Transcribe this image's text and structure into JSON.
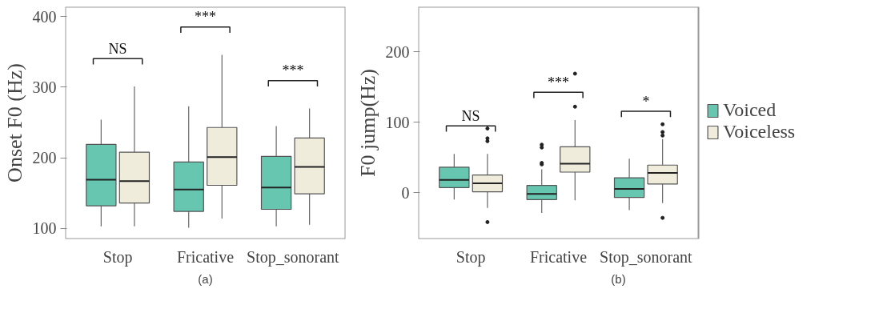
{
  "chart_data": [
    {
      "type": "box",
      "ylabel": "Onset F0 (Hz)",
      "xlabel": "(a)",
      "categories": [
        "Stop",
        "Fricative",
        "Stop_sonorant"
      ],
      "ylim": [
        85,
        414
      ],
      "yticks": [
        100,
        200,
        300,
        400
      ],
      "grid": false,
      "series": [
        {
          "color": "#66c6b0",
          "boxes": [
            {
              "low": 103,
              "q1": 132,
              "median": 169,
              "q3": 219,
              "high": 254
            },
            {
              "low": 101,
              "q1": 124,
              "median": 155,
              "q3": 194,
              "high": 273
            },
            {
              "low": 103,
              "q1": 127,
              "median": 158,
              "q3": 202,
              "high": 245
            }
          ]
        },
        {
          "color": "#efecdc",
          "boxes": [
            {
              "low": 103,
              "q1": 136,
              "median": 167,
              "q3": 208,
              "high": 301
            },
            {
              "low": 114,
              "q1": 161,
              "median": 201,
              "q3": 243,
              "high": 346
            },
            {
              "low": 105,
              "q1": 149,
              "median": 187,
              "q3": 228,
              "high": 270
            }
          ]
        }
      ],
      "annotations": [
        "NS",
        "***",
        "***"
      ]
    },
    {
      "type": "box",
      "ylabel": "F0 jump(Hz)",
      "xlabel": "(b)",
      "categories": [
        "Stop",
        "Fricative",
        "Stop_sonorant"
      ],
      "ylim": [
        -66,
        264
      ],
      "yticks": [
        0,
        100,
        200
      ],
      "grid": false,
      "legend": "right",
      "series": [
        {
          "name": "Voiced",
          "color": "#66c6b0",
          "boxes": [
            {
              "low": -10,
              "q1": 7,
              "median": 18,
              "q3": 36,
              "high": 55
            },
            {
              "low": -29,
              "q1": -10,
              "median": -2,
              "q3": 10,
              "high": 33,
              "outliers": [
                68,
                64,
                42,
                40
              ]
            },
            {
              "low": -25,
              "q1": -7,
              "median": 5,
              "q3": 21,
              "high": 48
            }
          ]
        },
        {
          "name": "Voiceless",
          "color": "#efecdc",
          "boxes": [
            {
              "low": -22,
              "q1": 1,
              "median": 13,
              "q3": 25,
              "high": 55,
              "outliers": [
                91,
                77,
                73,
                -42
              ]
            },
            {
              "low": -11,
              "q1": 29,
              "median": 41,
              "q3": 65,
              "high": 103,
              "outliers": [
                169,
                122
              ]
            },
            {
              "low": -15,
              "q1": 12,
              "median": 28,
              "q3": 39,
              "high": 76,
              "outliers": [
                97,
                86,
                81,
                -36
              ]
            }
          ]
        }
      ],
      "annotations": [
        "NS",
        "***",
        "*"
      ]
    }
  ]
}
